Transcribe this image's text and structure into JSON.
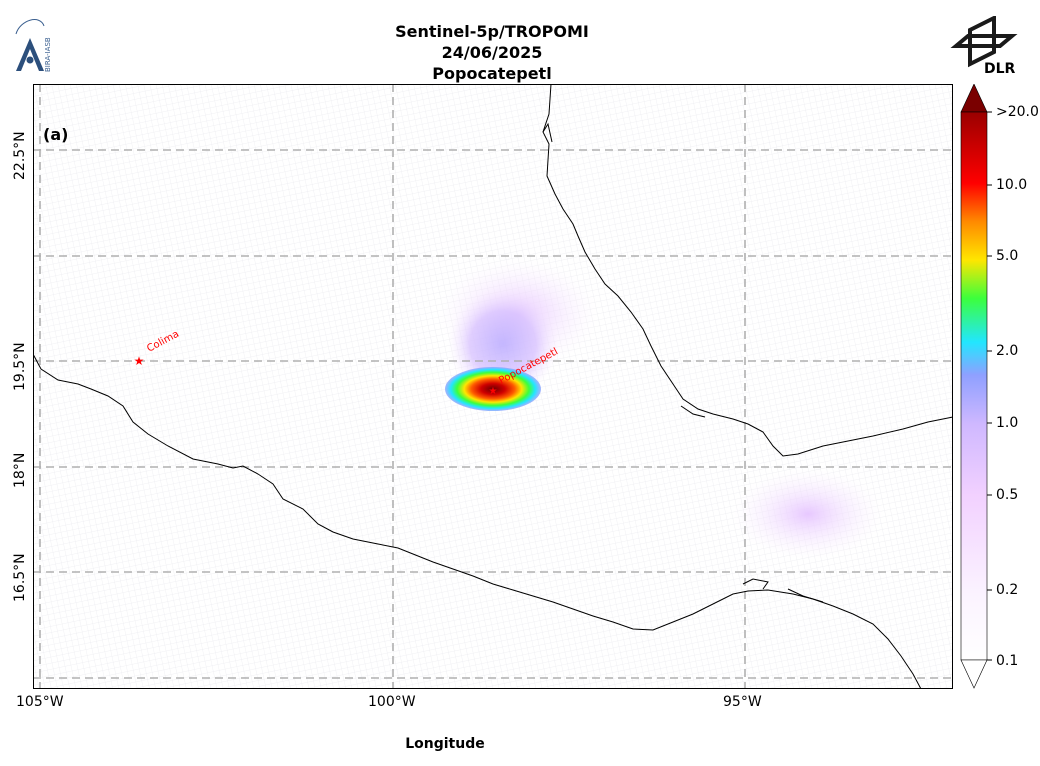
{
  "header": {
    "title_line1": "Sentinel-5p/TROPOMI",
    "title_line2": "24/06/2025",
    "title_line3": "Popocatepetl"
  },
  "logos": {
    "left_text": "BIRA-IASB",
    "right_text": "DLR"
  },
  "map": {
    "panel_label": "(a)",
    "x_axis_label": "Longitude",
    "lon_ticks": [
      "105°W",
      "100°W",
      "95°W"
    ],
    "lat_ticks": [
      "22.5°N",
      "19.5°N",
      "18°N",
      "16.5°N"
    ],
    "volcanoes": [
      {
        "name": "Colima",
        "color": "#ff0000"
      },
      {
        "name": "Popocatepetl",
        "color": "#ff0000"
      }
    ],
    "colors": {
      "grid": "#b0b0b0",
      "coast": "#000000",
      "frame": "#000000"
    }
  },
  "colorbar": {
    "scale": "log",
    "range": [
      0.1,
      20.0
    ],
    "tick_labels": [
      ">20.0",
      "10.0",
      "5.0",
      "2.0",
      "1.0",
      "0.5",
      "0.2",
      "0.1"
    ],
    "colors": [
      "#ffffff",
      "#f7d9ff",
      "#d6b3ff",
      "#8fa0ff",
      "#22e6ff",
      "#3cff3c",
      "#ffe600",
      "#ff8a00",
      "#ff0000",
      "#b00000",
      "#6a0000"
    ]
  }
}
